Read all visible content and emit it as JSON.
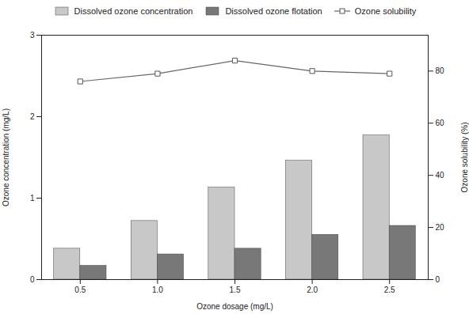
{
  "chart_data": {
    "type": "bar",
    "x": [
      0.5,
      1.0,
      1.5,
      2.0,
      2.5
    ],
    "x_label": "Ozone dosage (mg/L)",
    "y_label": "Ozone concentration (mg/L)",
    "y2_label": "Ozone solubility (%)",
    "xlim": [
      0.25,
      2.75
    ],
    "xticks": [
      0.5,
      {
        "value": 1.0,
        "label": "1.0"
      },
      1.5,
      {
        "value": 2.0,
        "label": "2.0"
      },
      2.5
    ],
    "ylim": [
      0,
      3
    ],
    "yticks": [
      0,
      1,
      2,
      3
    ],
    "y2lim": [
      0,
      93.75
    ],
    "y2ticks": [
      0,
      20,
      40,
      60,
      80
    ],
    "grid": false,
    "legend": "top",
    "series": [
      {
        "name": "Dissolved ozone concentration",
        "type": "bar",
        "color": "#c8c8c8",
        "values": [
          0.38,
          0.72,
          1.13,
          1.46,
          1.77
        ]
      },
      {
        "name": "Dissolved ozone flotation",
        "type": "bar",
        "color": "#787878",
        "values": [
          0.17,
          0.31,
          0.38,
          0.55,
          0.66
        ]
      },
      {
        "name": "Ozone solubility",
        "type": "line",
        "color": "#666666",
        "marker": "square",
        "axis": "y2",
        "values": [
          76,
          79,
          84,
          80,
          79
        ]
      }
    ]
  }
}
